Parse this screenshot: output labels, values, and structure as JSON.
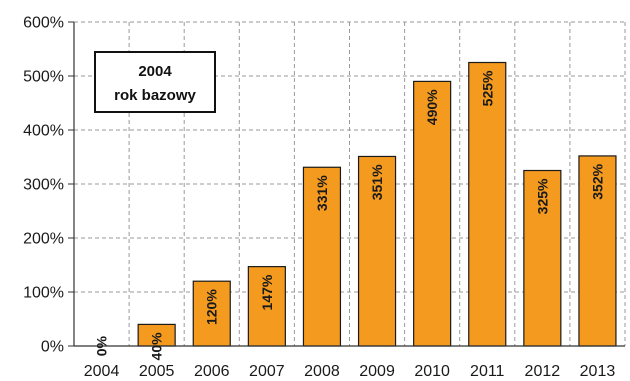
{
  "chart_data": {
    "type": "bar",
    "categories": [
      "2004",
      "2005",
      "2006",
      "2007",
      "2008",
      "2009",
      "2010",
      "2011",
      "2012",
      "2013"
    ],
    "values": [
      0,
      40,
      120,
      147,
      331,
      351,
      490,
      525,
      325,
      352
    ],
    "value_labels": [
      "0%",
      "40%",
      "120%",
      "147%",
      "331%",
      "351%",
      "490%",
      "525%",
      "325%",
      "352%"
    ],
    "ylim": [
      0,
      600
    ],
    "yticks": [
      0,
      100,
      200,
      300,
      400,
      500,
      600
    ],
    "ytick_labels": [
      "0%",
      "100%",
      "200%",
      "300%",
      "400%",
      "500%",
      "600%"
    ],
    "grid": "dashed",
    "bar_color": "#F39A1F",
    "annotation": {
      "line1": "2004",
      "line2": "rok bazowy"
    },
    "title": "",
    "xlabel": "",
    "ylabel": ""
  }
}
